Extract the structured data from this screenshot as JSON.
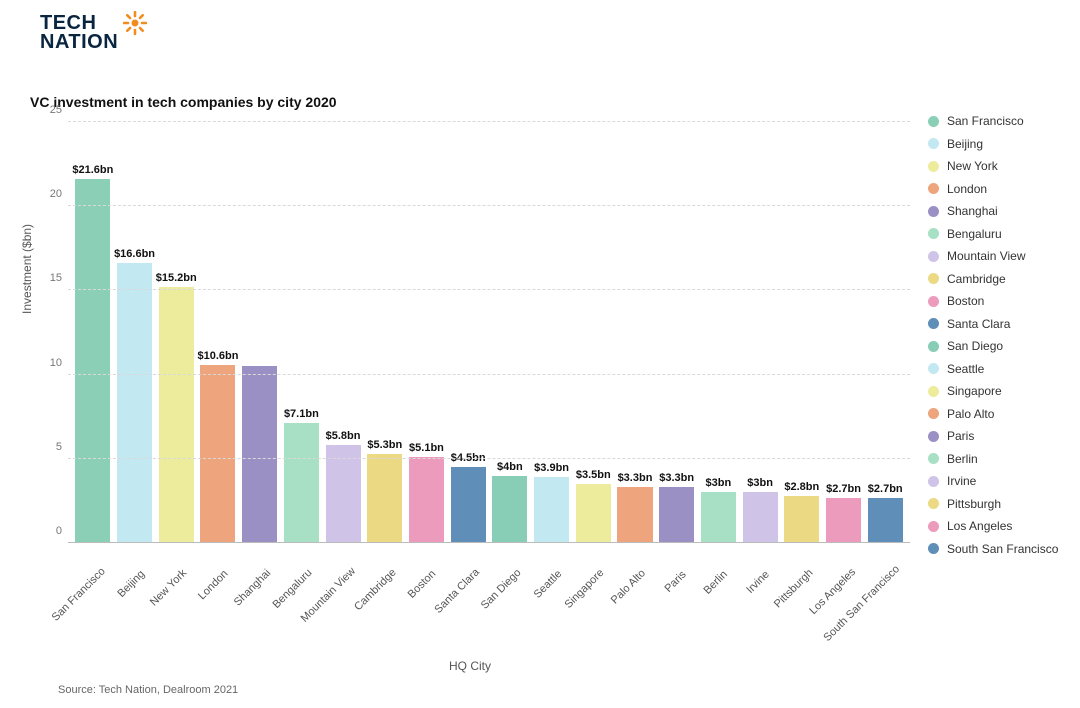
{
  "brand": {
    "line1": "TECH",
    "line2": "NATION",
    "text_color": "#0a2540",
    "sun_color": "#f28c1f"
  },
  "chart": {
    "type": "bar",
    "title": "VC investment in tech companies by city 2020",
    "title_fontsize": 14,
    "x_axis_label": "HQ City",
    "y_axis_label": "Investment ($bn)",
    "label_fontsize": 12,
    "ylim": [
      0,
      25
    ],
    "ytick_step": 5,
    "yticks": [
      0,
      5,
      10,
      15,
      20,
      25
    ],
    "grid_color": "#d9d9d9",
    "background_color": "#ffffff",
    "bar_width": 0.84,
    "value_label_fontsize": 11,
    "x_tick_rotation_deg": -45,
    "series": [
      {
        "city": "San Francisco",
        "value": 21.6,
        "label": "$21.6bn",
        "color": "#8acfb6"
      },
      {
        "city": "Beijing",
        "value": 16.6,
        "label": "$16.6bn",
        "color": "#c2e8f2"
      },
      {
        "city": "New York",
        "value": 15.2,
        "label": "$15.2bn",
        "color": "#edec9d"
      },
      {
        "city": "London",
        "value": 10.6,
        "label": "$10.6bn",
        "color": "#eea47c"
      },
      {
        "city": "Shanghai",
        "value": 10.5,
        "label": "",
        "color": "#9a90c3"
      },
      {
        "city": "Bengaluru",
        "value": 7.1,
        "label": "$7.1bn",
        "color": "#a7e0c5"
      },
      {
        "city": "Mountain View",
        "value": 5.8,
        "label": "$5.8bn",
        "color": "#cfc4e8"
      },
      {
        "city": "Cambridge",
        "value": 5.3,
        "label": "$5.3bn",
        "color": "#ecd983"
      },
      {
        "city": "Boston",
        "value": 5.1,
        "label": "$5.1bn",
        "color": "#ec9bbd"
      },
      {
        "city": "Santa Clara",
        "value": 4.5,
        "label": "$4.5bn",
        "color": "#5f8fb8"
      },
      {
        "city": "San Diego",
        "value": 4.0,
        "label": "$4bn",
        "color": "#88cdb5"
      },
      {
        "city": "Seattle",
        "value": 3.9,
        "label": "$3.9bn",
        "color": "#c2e8f2"
      },
      {
        "city": "Singapore",
        "value": 3.5,
        "label": "$3.5bn",
        "color": "#edec9d"
      },
      {
        "city": "Palo Alto",
        "value": 3.3,
        "label": "$3.3bn",
        "color": "#eea47c"
      },
      {
        "city": "Paris",
        "value": 3.3,
        "label": "$3.3bn",
        "color": "#9a90c3"
      },
      {
        "city": "Berlin",
        "value": 3.0,
        "label": "$3bn",
        "color": "#a7e0c5"
      },
      {
        "city": "Irvine",
        "value": 3.0,
        "label": "$3bn",
        "color": "#cfc4e8"
      },
      {
        "city": "Pittsburgh",
        "value": 2.8,
        "label": "$2.8bn",
        "color": "#ecd983"
      },
      {
        "city": "Los Angeles",
        "value": 2.7,
        "label": "$2.7bn",
        "color": "#ec9bbd"
      },
      {
        "city": "South San Francisco",
        "value": 2.7,
        "label": "$2.7bn",
        "color": "#5f8fb8"
      }
    ]
  },
  "legend": {
    "items": [
      {
        "label": "San Francisco",
        "color": "#8acfb6"
      },
      {
        "label": "Beijing",
        "color": "#c2e8f2"
      },
      {
        "label": "New York",
        "color": "#edec9d"
      },
      {
        "label": "London",
        "color": "#eea47c"
      },
      {
        "label": "Shanghai",
        "color": "#9a90c3"
      },
      {
        "label": "Bengaluru",
        "color": "#a7e0c5"
      },
      {
        "label": "Mountain View",
        "color": "#cfc4e8"
      },
      {
        "label": "Cambridge",
        "color": "#ecd983"
      },
      {
        "label": "Boston",
        "color": "#ec9bbd"
      },
      {
        "label": "Santa Clara",
        "color": "#5f8fb8"
      },
      {
        "label": "San Diego",
        "color": "#88cdb5"
      },
      {
        "label": "Seattle",
        "color": "#c2e8f2"
      },
      {
        "label": "Singapore",
        "color": "#edec9d"
      },
      {
        "label": "Palo Alto",
        "color": "#eea47c"
      },
      {
        "label": "Paris",
        "color": "#9a90c3"
      },
      {
        "label": "Berlin",
        "color": "#a7e0c5"
      },
      {
        "label": "Irvine",
        "color": "#cfc4e8"
      },
      {
        "label": "Pittsburgh",
        "color": "#ecd983"
      },
      {
        "label": "Los Angeles",
        "color": "#ec9bbd"
      },
      {
        "label": "South San Francisco",
        "color": "#5f8fb8"
      }
    ]
  },
  "source": "Source: Tech Nation, Dealroom 2021"
}
